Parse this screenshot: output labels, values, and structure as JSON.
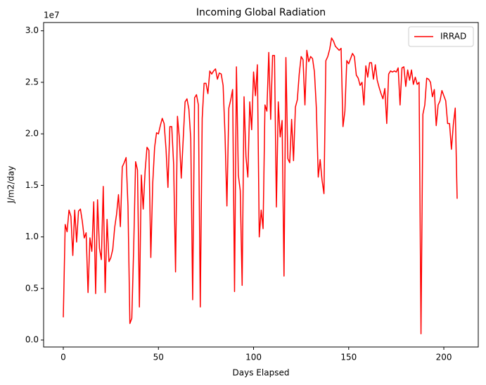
{
  "chart_data": {
    "type": "line",
    "title": "Incoming Global Radiation",
    "x_label": "Days Elapsed",
    "y_label": "J/m2/day",
    "y_offset_label": "1e7",
    "x": [
      0,
      1,
      2,
      3,
      4,
      5,
      6,
      7,
      8,
      9,
      10,
      11,
      12,
      13,
      14,
      15,
      16,
      17,
      18,
      19,
      20,
      21,
      22,
      23,
      24,
      25,
      26,
      27,
      28,
      29,
      30,
      31,
      32,
      33,
      34,
      35,
      36,
      37,
      38,
      39,
      40,
      41,
      42,
      43,
      44,
      45,
      46,
      47,
      48,
      49,
      50,
      51,
      52,
      53,
      54,
      55,
      56,
      57,
      58,
      59,
      60,
      61,
      62,
      63,
      64,
      65,
      66,
      67,
      68,
      69,
      70,
      71,
      72,
      73,
      74,
      75,
      76,
      77,
      78,
      79,
      80,
      81,
      82,
      83,
      84,
      85,
      86,
      87,
      88,
      89,
      90,
      91,
      92,
      93,
      94,
      95,
      96,
      97,
      98,
      99,
      100,
      101,
      102,
      103,
      104,
      105,
      106,
      107,
      108,
      109,
      110,
      111,
      112,
      113,
      114,
      115,
      116,
      117,
      118,
      119,
      120,
      121,
      122,
      123,
      124,
      125,
      126,
      127,
      128,
      129,
      130,
      131,
      132,
      133,
      134,
      135,
      136,
      137,
      138,
      139,
      140,
      141,
      142,
      143,
      144,
      145,
      146,
      147,
      148,
      149,
      150,
      151,
      152,
      153,
      154,
      155,
      156,
      157,
      158,
      159,
      160,
      161,
      162,
      163,
      164,
      165,
      166,
      167,
      168,
      169,
      170,
      171,
      172,
      173,
      174,
      175,
      176,
      177,
      178,
      179,
      180,
      181,
      182,
      183,
      184,
      185,
      186,
      187,
      188,
      189,
      190,
      191,
      192,
      193,
      194,
      195,
      196,
      197,
      198,
      199,
      200,
      201,
      202,
      203,
      204,
      205,
      206,
      207
    ],
    "series": [
      {
        "name": "IRRAD",
        "color": "#ff0000",
        "values": [
          0.22,
          1.12,
          1.05,
          1.26,
          1.2,
          0.82,
          1.26,
          0.95,
          1.25,
          1.27,
          1.15,
          0.99,
          1.04,
          0.46,
          0.99,
          0.86,
          1.34,
          0.45,
          1.36,
          0.89,
          0.78,
          1.49,
          0.46,
          1.17,
          0.76,
          0.8,
          0.88,
          1.09,
          1.22,
          1.41,
          1.1,
          1.68,
          1.72,
          1.77,
          1.3,
          0.16,
          0.21,
          0.9,
          1.73,
          1.65,
          0.32,
          1.6,
          1.27,
          1.64,
          1.87,
          1.84,
          0.8,
          1.52,
          1.87,
          2.01,
          2.0,
          2.08,
          2.15,
          2.1,
          1.85,
          1.48,
          2.07,
          2.07,
          1.7,
          0.66,
          2.17,
          1.96,
          1.57,
          1.94,
          2.31,
          2.34,
          2.24,
          1.95,
          0.39,
          2.35,
          2.38,
          2.28,
          0.32,
          2.15,
          2.49,
          2.49,
          2.39,
          2.61,
          2.58,
          2.61,
          2.63,
          2.53,
          2.59,
          2.58,
          2.47,
          1.99,
          1.3,
          2.25,
          2.33,
          2.43,
          0.47,
          2.65,
          1.6,
          1.45,
          0.53,
          2.36,
          1.78,
          1.58,
          2.31,
          2.04,
          2.6,
          2.37,
          2.67,
          1.0,
          1.26,
          1.08,
          2.28,
          2.22,
          2.79,
          2.14,
          2.76,
          2.76,
          1.29,
          2.31,
          1.97,
          2.13,
          0.62,
          2.74,
          1.76,
          1.72,
          2.14,
          1.74,
          2.26,
          2.33,
          2.58,
          2.75,
          2.72,
          2.28,
          2.81,
          2.7,
          2.75,
          2.73,
          2.6,
          2.25,
          1.58,
          1.75,
          1.55,
          1.42,
          2.71,
          2.75,
          2.82,
          2.93,
          2.9,
          2.85,
          2.83,
          2.81,
          2.83,
          2.07,
          2.22,
          2.71,
          2.68,
          2.73,
          2.78,
          2.75,
          2.57,
          2.54,
          2.47,
          2.5,
          2.28,
          2.66,
          2.55,
          2.69,
          2.69,
          2.53,
          2.67,
          2.52,
          2.45,
          2.39,
          2.34,
          2.44,
          2.1,
          2.58,
          2.61,
          2.6,
          2.61,
          2.6,
          2.64,
          2.28,
          2.64,
          2.65,
          2.46,
          2.62,
          2.52,
          2.62,
          2.48,
          2.55,
          2.48,
          2.5,
          0.06,
          2.19,
          2.28,
          2.54,
          2.53,
          2.5,
          2.36,
          2.43,
          2.08,
          2.28,
          2.32,
          2.42,
          2.37,
          2.32,
          2.1,
          2.1,
          1.85,
          2.09,
          2.25,
          1.37
        ]
      }
    ],
    "xlim": [
      -10.35,
      218.1
    ],
    "xticks": [
      0,
      50,
      100,
      150,
      200
    ],
    "ylim": [
      -0.068,
      3.08
    ],
    "yticks": [
      {
        "value": 0,
        "label": "0.0"
      },
      0.5,
      {
        "value": 1,
        "label": "1.0"
      },
      1.5,
      {
        "value": 2,
        "label": "2.0"
      },
      2.5,
      {
        "value": 3,
        "label": "3.0"
      }
    ],
    "grid": false,
    "legend": "upper right"
  }
}
